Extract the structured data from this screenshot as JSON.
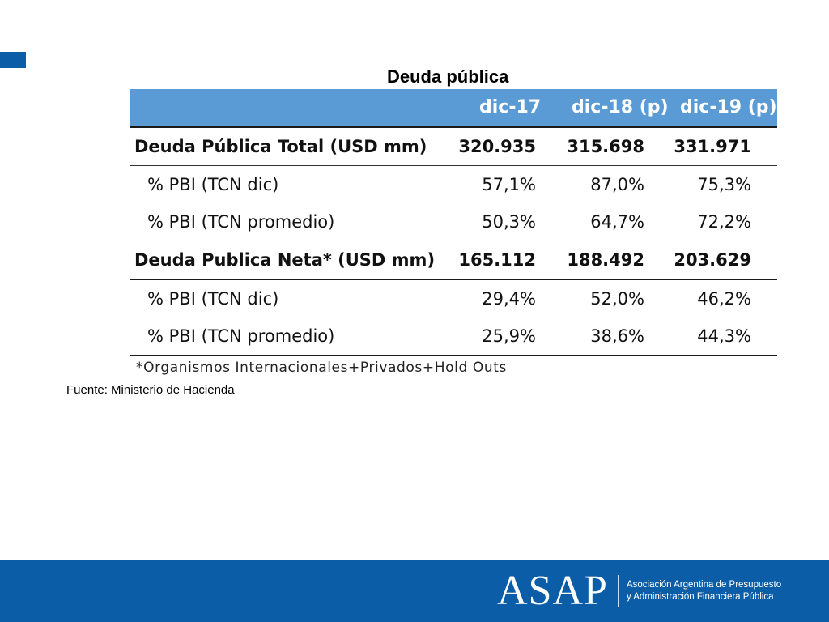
{
  "table": {
    "title": "Deuda pública",
    "headers": [
      "dic-17",
      "dic-18 (p)",
      "dic-19 (p)"
    ],
    "rows": [
      {
        "label": "Deuda Pública Total (USD mm)",
        "values": [
          "320.935",
          "315.698",
          "331.971"
        ],
        "bold": true
      },
      {
        "label": "% PBI (TCN dic)",
        "values": [
          "57,1%",
          "87,0%",
          "75,3%"
        ],
        "bold": false
      },
      {
        "label": "% PBI (TCN promedio)",
        "values": [
          "50,3%",
          "64,7%",
          "72,2%"
        ],
        "bold": false
      },
      {
        "label": "Deuda Publica Neta* (USD mm)",
        "values": [
          "165.112",
          "188.492",
          "203.629"
        ],
        "bold": true
      },
      {
        "label": "% PBI (TCN dic)",
        "values": [
          "29,4%",
          "52,0%",
          "46,2%"
        ],
        "bold": false
      },
      {
        "label": "% PBI (TCN promedio)",
        "values": [
          "25,9%",
          "38,6%",
          "44,3%"
        ],
        "bold": false
      }
    ],
    "footnote": "*Organismos Internacionales+Privados+Hold Outs"
  },
  "source": "Fuente: Ministerio de Hacienda",
  "footer": {
    "logo": "ASAP",
    "org_line1": "Asociación Argentina de Presupuesto",
    "org_line2": "y Administración Financiera Pública"
  },
  "colors": {
    "header_blue": "#5b9bd5",
    "footer_blue": "#0b5da8"
  }
}
